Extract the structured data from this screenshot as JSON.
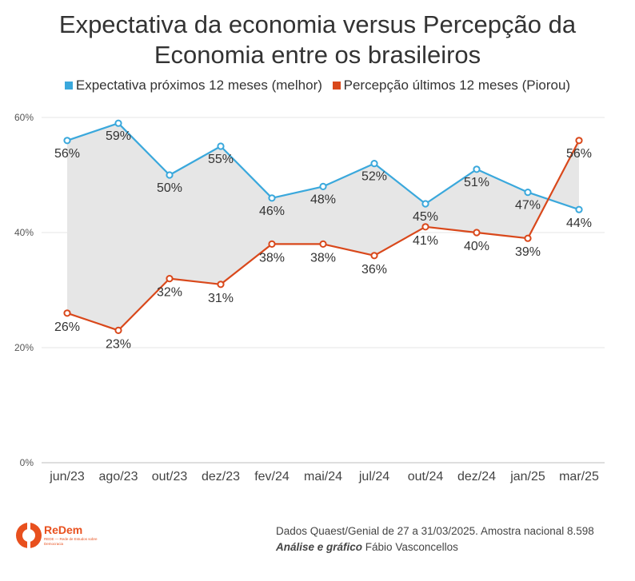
{
  "title_lines": [
    "Expectativa da economia versus Percepção da",
    "Economia entre os brasileiros"
  ],
  "legend": [
    {
      "label": "Expectativa próximos 12 meses (melhor)",
      "color": "#3aa8dc"
    },
    {
      "label": "Percepção últimos 12 meses (Piorou)",
      "color": "#d9481b"
    }
  ],
  "chart_data": {
    "type": "line",
    "categories": [
      "jun/23",
      "ago/23",
      "out/23",
      "dez/23",
      "fev/24",
      "mai/24",
      "jul/24",
      "out/24",
      "dez/24",
      "jan/25",
      "mar/25"
    ],
    "series": [
      {
        "name": "Expectativa próximos 12 meses (melhor)",
        "color": "#3aa8dc",
        "values": [
          56,
          59,
          50,
          55,
          46,
          48,
          52,
          45,
          51,
          47,
          44
        ]
      },
      {
        "name": "Percepção últimos 12 meses (Piorou)",
        "color": "#d9481b",
        "values": [
          26,
          23,
          32,
          31,
          38,
          38,
          36,
          41,
          40,
          39,
          56
        ]
      }
    ],
    "y_ticks": [
      "0%",
      "20%",
      "40%",
      "60%"
    ],
    "ylim": [
      0,
      60
    ],
    "fill_between": true,
    "fill_color": "#e6e6e6",
    "grid": true
  },
  "footer": {
    "source": "Dados Quaest/Genial de 27 a 31/03/2025. Amostra nacional 8.598",
    "credit_bold": "Análise e gráfico",
    "credit_name": " Fábio Vasconcellos"
  },
  "logo": {
    "brand": "ReDem",
    "tagline": "REDE — Rede de Estudos sobre Democracia"
  }
}
